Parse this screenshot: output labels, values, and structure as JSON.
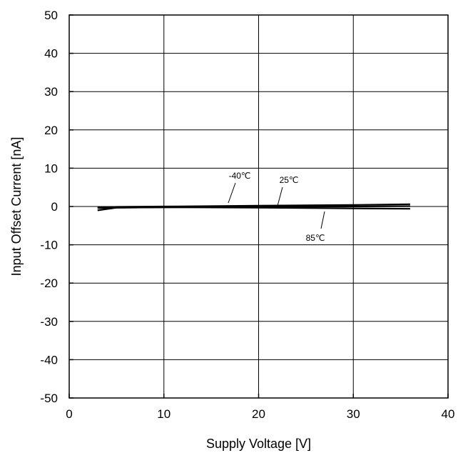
{
  "chart_data": {
    "type": "line",
    "title": "",
    "xlabel": "Supply Voltage [V]",
    "ylabel": "Input Offset Current [nA]",
    "xlim": [
      0,
      40
    ],
    "ylim": [
      -50,
      50
    ],
    "xticks": [
      0,
      10,
      20,
      30,
      40
    ],
    "yticks": [
      -50,
      -40,
      -30,
      -20,
      -10,
      0,
      10,
      20,
      30,
      40,
      50
    ],
    "grid": true,
    "legend": "none",
    "series": [
      {
        "name": "-40℃",
        "x": [
          3,
          5,
          10,
          20,
          30,
          36
        ],
        "y": [
          -0.4,
          -0.3,
          -0.2,
          -0.1,
          0.0,
          0.1
        ]
      },
      {
        "name": "25℃",
        "x": [
          3,
          5,
          10,
          20,
          30,
          36
        ],
        "y": [
          -0.3,
          -0.1,
          0.0,
          0.2,
          0.4,
          0.6
        ]
      },
      {
        "name": "85℃",
        "x": [
          3,
          5,
          10,
          20,
          30,
          36
        ],
        "y": [
          -1.0,
          -0.3,
          -0.2,
          -0.3,
          -0.5,
          -0.6
        ]
      }
    ],
    "annotations": [
      {
        "label": "-40℃",
        "x": 16.8,
        "y": 0.05
      },
      {
        "label": "25℃",
        "x": 22.0,
        "y": 0.3
      },
      {
        "label": "85℃",
        "x": 27.0,
        "y": -0.4
      }
    ]
  }
}
